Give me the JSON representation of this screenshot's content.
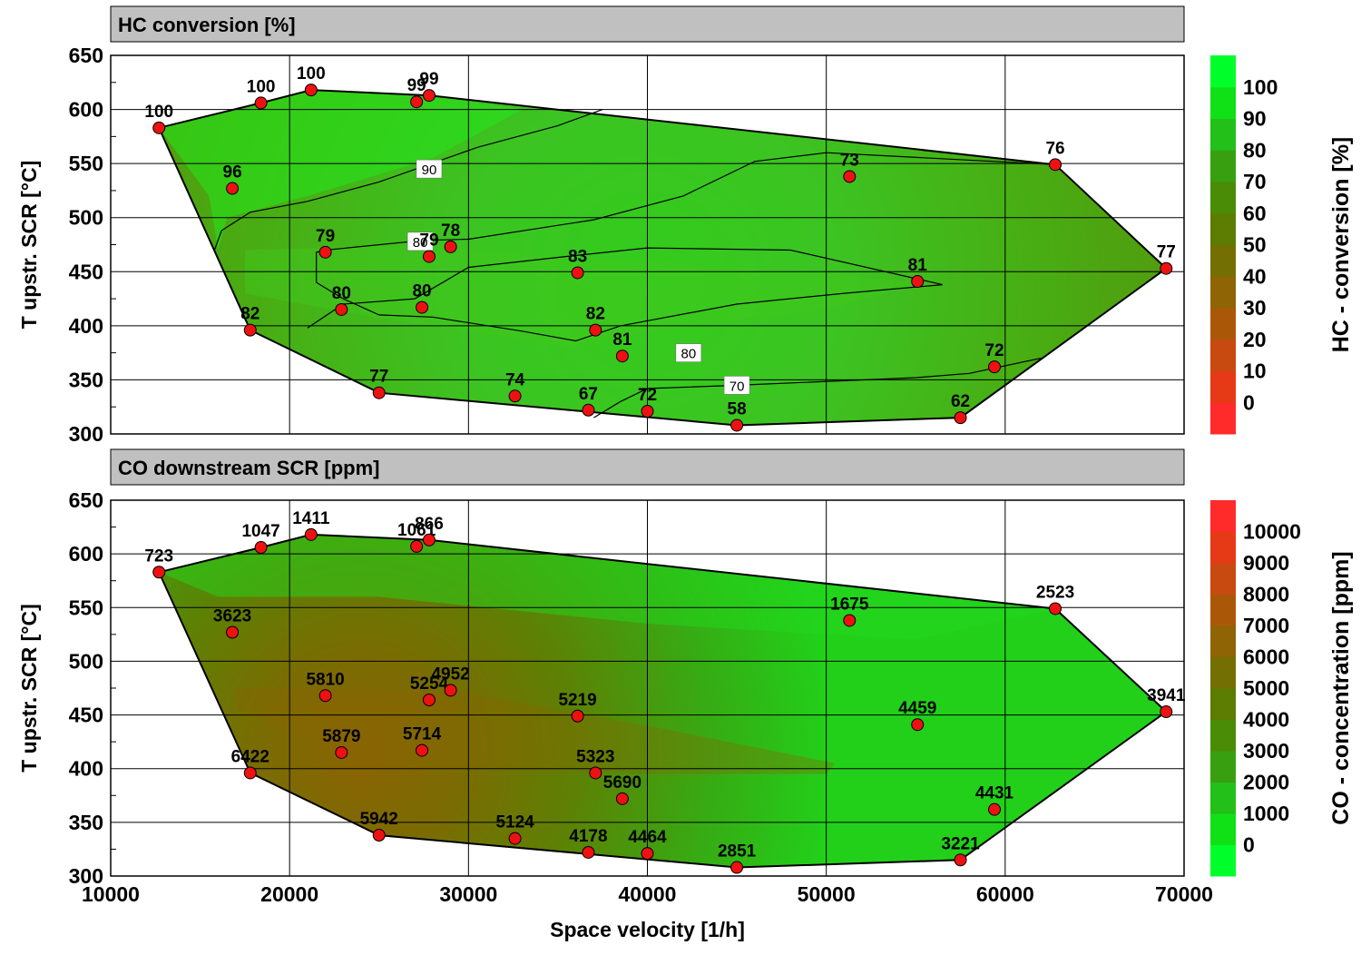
{
  "chart_data": [
    {
      "type": "contour-scatter",
      "title": "HC conversion [%]",
      "xlabel": "",
      "ylabel": "T upstr. SCR [°C]",
      "xlim": [
        10000,
        70000
      ],
      "ylim": [
        300,
        650
      ],
      "xticks": [
        10000,
        20000,
        30000,
        40000,
        50000,
        60000,
        70000
      ],
      "yticks": [
        300,
        350,
        400,
        450,
        500,
        550,
        600,
        650
      ],
      "colorbar": {
        "label": "HC - conversion [%]",
        "ticks": [
          0,
          10,
          20,
          30,
          40,
          50,
          60,
          70,
          80,
          90,
          100
        ],
        "colors": [
          "#ff2a2a",
          "#e63a16",
          "#c84a10",
          "#aa5808",
          "#8e6404",
          "#746f02",
          "#5c7c02",
          "#4a8c06",
          "#38a010",
          "#22c018",
          "#10e016",
          "#00ff2a"
        ],
        "grid": false
      },
      "contour_labels": [
        {
          "value": "90",
          "x": 27800,
          "y": 545
        },
        {
          "value": "80",
          "x": 27300,
          "y": 478
        },
        {
          "value": "80",
          "x": 42300,
          "y": 375
        },
        {
          "value": "70",
          "x": 45000,
          "y": 345
        }
      ],
      "points": [
        {
          "x": 12700,
          "y": 583,
          "label": "100"
        },
        {
          "x": 18400,
          "y": 606,
          "label": "100"
        },
        {
          "x": 21200,
          "y": 618,
          "label": "100"
        },
        {
          "x": 27100,
          "y": 607,
          "label": "99"
        },
        {
          "x": 27800,
          "y": 613,
          "label": "99"
        },
        {
          "x": 16800,
          "y": 527,
          "label": "96"
        },
        {
          "x": 51300,
          "y": 538,
          "label": "73"
        },
        {
          "x": 62800,
          "y": 549,
          "label": "76"
        },
        {
          "x": 69000,
          "y": 453,
          "label": "77"
        },
        {
          "x": 22000,
          "y": 468,
          "label": "79"
        },
        {
          "x": 27800,
          "y": 464,
          "label": "79"
        },
        {
          "x": 29000,
          "y": 473,
          "label": "78"
        },
        {
          "x": 36100,
          "y": 449,
          "label": "83"
        },
        {
          "x": 55100,
          "y": 441,
          "label": "81"
        },
        {
          "x": 22900,
          "y": 415,
          "label": "80"
        },
        {
          "x": 27400,
          "y": 417,
          "label": "80"
        },
        {
          "x": 17800,
          "y": 396,
          "label": "82"
        },
        {
          "x": 37100,
          "y": 396,
          "label": "82"
        },
        {
          "x": 38600,
          "y": 372,
          "label": "81"
        },
        {
          "x": 59400,
          "y": 362,
          "label": "72"
        },
        {
          "x": 25000,
          "y": 338,
          "label": "77"
        },
        {
          "x": 32600,
          "y": 335,
          "label": "74"
        },
        {
          "x": 36700,
          "y": 322,
          "label": "67"
        },
        {
          "x": 40000,
          "y": 321,
          "label": "72"
        },
        {
          "x": 45000,
          "y": 308,
          "label": "58"
        },
        {
          "x": 57500,
          "y": 315,
          "label": "62"
        }
      ]
    },
    {
      "type": "contour-scatter",
      "title": "CO downstream SCR [ppm]",
      "xlabel": "Space velocity [1/h]",
      "ylabel": "T upstr. SCR [°C]",
      "xlim": [
        10000,
        70000
      ],
      "ylim": [
        300,
        650
      ],
      "xticks": [
        10000,
        20000,
        30000,
        40000,
        50000,
        60000,
        70000
      ],
      "yticks": [
        300,
        350,
        400,
        450,
        500,
        550,
        600,
        650
      ],
      "colorbar": {
        "label": "CO - concentration [ppm]",
        "ticks": [
          0,
          1000,
          2000,
          3000,
          4000,
          5000,
          6000,
          7000,
          8000,
          9000,
          10000
        ],
        "colors": [
          "#00ff2a",
          "#10e016",
          "#22c018",
          "#38a010",
          "#4a8c06",
          "#5c7c02",
          "#746f02",
          "#8e6404",
          "#aa5808",
          "#c84a10",
          "#e63a16",
          "#ff2a2a"
        ],
        "grid": false
      },
      "points": [
        {
          "x": 12700,
          "y": 583,
          "label": "723"
        },
        {
          "x": 18400,
          "y": 606,
          "label": "1047"
        },
        {
          "x": 21200,
          "y": 618,
          "label": "1411"
        },
        {
          "x": 27100,
          "y": 607,
          "label": "1061"
        },
        {
          "x": 27800,
          "y": 613,
          "label": "866"
        },
        {
          "x": 16800,
          "y": 527,
          "label": "3623"
        },
        {
          "x": 51300,
          "y": 538,
          "label": "1675"
        },
        {
          "x": 62800,
          "y": 549,
          "label": "2523"
        },
        {
          "x": 69000,
          "y": 453,
          "label": "3941"
        },
        {
          "x": 22000,
          "y": 468,
          "label": "5810"
        },
        {
          "x": 27800,
          "y": 464,
          "label": "5254"
        },
        {
          "x": 29000,
          "y": 473,
          "label": "4952"
        },
        {
          "x": 36100,
          "y": 449,
          "label": "5219"
        },
        {
          "x": 55100,
          "y": 441,
          "label": "4459"
        },
        {
          "x": 22900,
          "y": 415,
          "label": "5879"
        },
        {
          "x": 27400,
          "y": 417,
          "label": "5714"
        },
        {
          "x": 17800,
          "y": 396,
          "label": "6422"
        },
        {
          "x": 37100,
          "y": 396,
          "label": "5323"
        },
        {
          "x": 38600,
          "y": 372,
          "label": "5690"
        },
        {
          "x": 59400,
          "y": 362,
          "label": "4431"
        },
        {
          "x": 25000,
          "y": 338,
          "label": "5942"
        },
        {
          "x": 32600,
          "y": 335,
          "label": "5124"
        },
        {
          "x": 36700,
          "y": 322,
          "label": "4178"
        },
        {
          "x": 40000,
          "y": 321,
          "label": "4464"
        },
        {
          "x": 45000,
          "y": 308,
          "label": "2851"
        },
        {
          "x": 57500,
          "y": 315,
          "label": "3221"
        }
      ]
    }
  ],
  "hull": [
    [
      12700,
      583
    ],
    [
      18400,
      606
    ],
    [
      21200,
      618
    ],
    [
      27800,
      613
    ],
    [
      62800,
      549
    ],
    [
      69000,
      453
    ],
    [
      57500,
      315
    ],
    [
      45000,
      308
    ],
    [
      25000,
      338
    ],
    [
      17800,
      396
    ]
  ]
}
